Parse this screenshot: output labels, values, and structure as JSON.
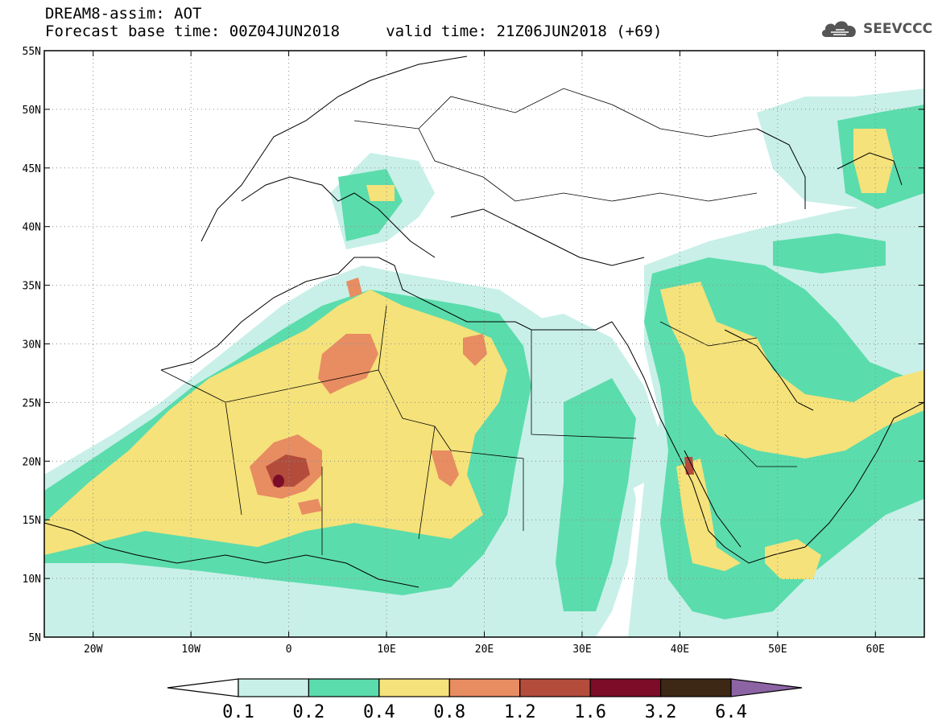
{
  "header": {
    "line1": "DREAM8-assim: AOT",
    "line2": "Forecast base time: 00Z04JUN2018     valid time: 21Z06JUN2018 (+69)"
  },
  "logo": {
    "text": "SEEVCCC",
    "icon": "cloud-icon",
    "color": "#555555"
  },
  "map": {
    "lon_range": [
      -25,
      65
    ],
    "lat_range": [
      5,
      55
    ],
    "lat_ticks": [
      {
        "value": 55,
        "label": "55N"
      },
      {
        "value": 50,
        "label": "50N"
      },
      {
        "value": 45,
        "label": "45N"
      },
      {
        "value": 40,
        "label": "40N"
      },
      {
        "value": 35,
        "label": "35N"
      },
      {
        "value": 30,
        "label": "30N"
      },
      {
        "value": 25,
        "label": "25N"
      },
      {
        "value": 20,
        "label": "20N"
      },
      {
        "value": 15,
        "label": "15N"
      },
      {
        "value": 10,
        "label": "10N"
      },
      {
        "value": 5,
        "label": "5N"
      }
    ],
    "lon_ticks": [
      {
        "value": -20,
        "label": "20W"
      },
      {
        "value": -10,
        "label": "10W"
      },
      {
        "value": 0,
        "label": "0"
      },
      {
        "value": 10,
        "label": "10E"
      },
      {
        "value": 20,
        "label": "20E"
      },
      {
        "value": 30,
        "label": "30E"
      },
      {
        "value": 40,
        "label": "40E"
      },
      {
        "value": 50,
        "label": "50E"
      },
      {
        "value": 60,
        "label": "60E"
      }
    ],
    "grid": "dotted"
  },
  "colorbar": {
    "labels": [
      "0.1",
      "0.2",
      "0.4",
      "0.8",
      "1.2",
      "1.6",
      "3.2",
      "6.4"
    ],
    "colors": [
      "#ffffff",
      "#c8f0e8",
      "#5bdcac",
      "#f5e27a",
      "#e88c62",
      "#b44c3c",
      "#7c0c28",
      "#3c2814",
      "#8c64a4"
    ]
  }
}
